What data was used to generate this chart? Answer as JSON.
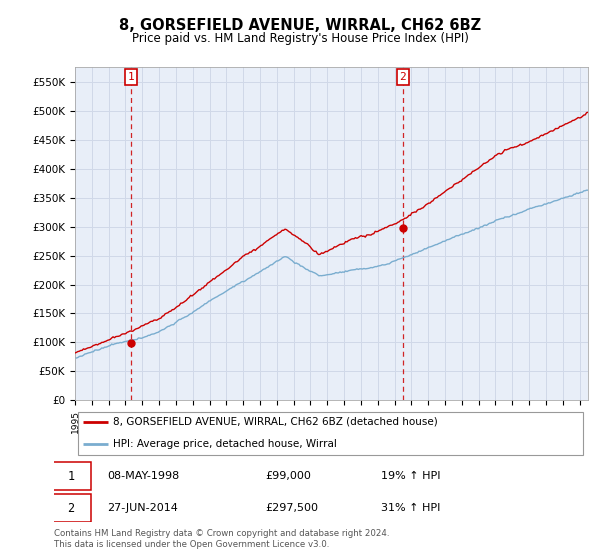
{
  "title": "8, GORSEFIELD AVENUE, WIRRAL, CH62 6BZ",
  "subtitle": "Price paid vs. HM Land Registry's House Price Index (HPI)",
  "ylim": [
    0,
    575000
  ],
  "yticks": [
    0,
    50000,
    100000,
    150000,
    200000,
    250000,
    300000,
    350000,
    400000,
    450000,
    500000,
    550000
  ],
  "ytick_labels": [
    "£0",
    "£50K",
    "£100K",
    "£150K",
    "£200K",
    "£250K",
    "£300K",
    "£350K",
    "£400K",
    "£450K",
    "£500K",
    "£550K"
  ],
  "red_line_color": "#cc0000",
  "blue_line_color": "#7aadcf",
  "grid_color": "#d0d8e8",
  "background_color": "#e8eef8",
  "sale1_date": "08-MAY-1998",
  "sale1_price": 99000,
  "sale1_hpi": "19% ↑ HPI",
  "sale2_date": "27-JUN-2014",
  "sale2_price": 297500,
  "sale2_hpi": "31% ↑ HPI",
  "legend_red": "8, GORSEFIELD AVENUE, WIRRAL, CH62 6BZ (detached house)",
  "legend_blue": "HPI: Average price, detached house, Wirral",
  "footer": "Contains HM Land Registry data © Crown copyright and database right 2024.\nThis data is licensed under the Open Government Licence v3.0.",
  "sale1_x": 1998.35,
  "sale2_x": 2014.49,
  "xmin": 1995,
  "xmax": 2025.5
}
